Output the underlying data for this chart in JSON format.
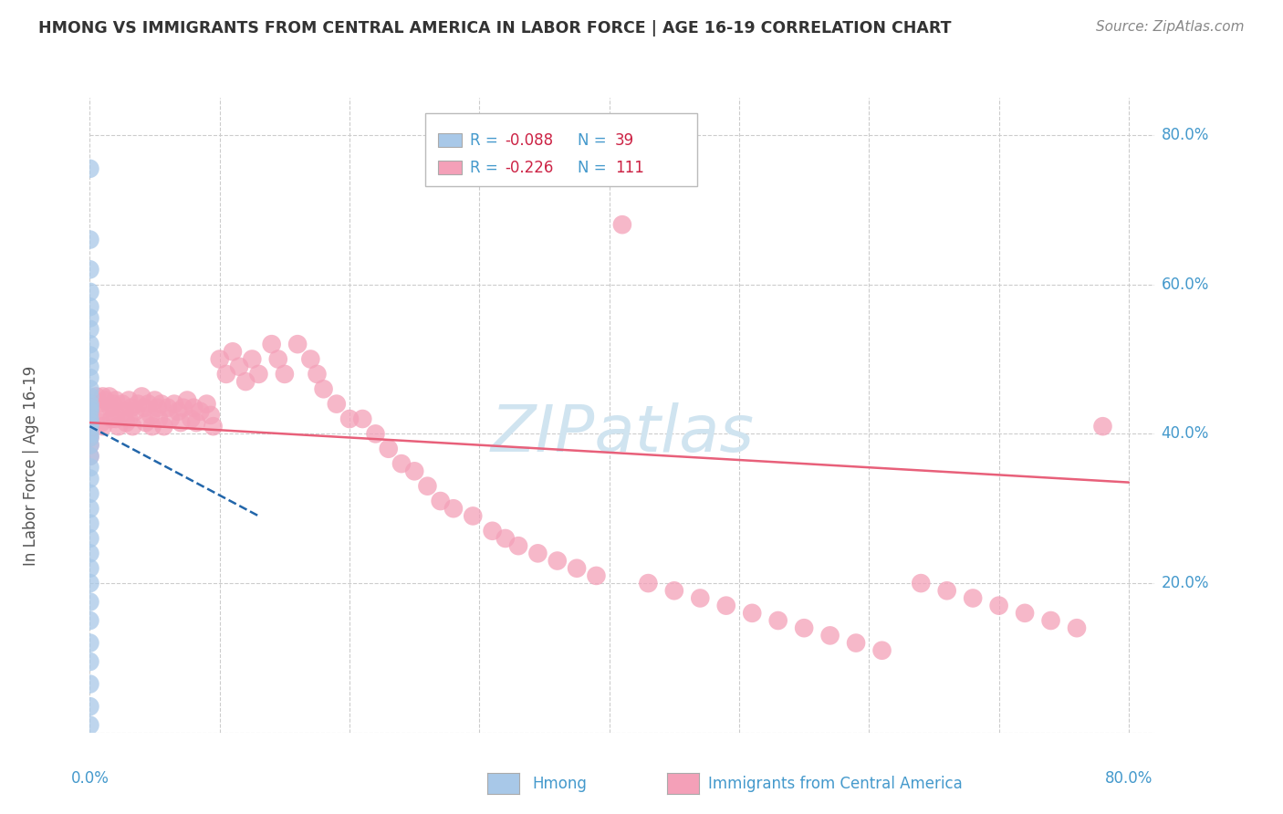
{
  "title": "HMONG VS IMMIGRANTS FROM CENTRAL AMERICA IN LABOR FORCE | AGE 16-19 CORRELATION CHART",
  "source": "Source: ZipAtlas.com",
  "ylabel": "In Labor Force | Age 16-19",
  "xlim": [
    0.0,
    0.82
  ],
  "ylim": [
    0.0,
    0.85
  ],
  "hmong_R": -0.088,
  "hmong_N": 39,
  "ca_R": -0.226,
  "ca_N": 111,
  "hmong_color": "#a8c8e8",
  "ca_color": "#f4a0b8",
  "hmong_line_color": "#2266aa",
  "ca_line_color": "#e8607a",
  "background_color": "#ffffff",
  "grid_color": "#cccccc",
  "title_color": "#333333",
  "tick_label_color": "#4499cc",
  "source_color": "#888888",
  "watermark_color": "#d0e4f0",
  "legend_R_color": "#cc2244",
  "hmong_x": [
    0.0,
    0.0,
    0.0,
    0.0,
    0.0,
    0.0,
    0.0,
    0.0,
    0.0,
    0.0,
    0.0,
    0.0,
    0.0,
    0.0,
    0.0,
    0.0,
    0.0,
    0.0,
    0.0,
    0.0,
    0.0,
    0.0,
    0.0,
    0.0,
    0.0,
    0.0,
    0.0,
    0.0,
    0.0,
    0.0,
    0.0,
    0.0,
    0.0,
    0.0,
    0.0,
    0.0,
    0.0,
    0.0,
    0.0
  ],
  "hmong_y": [
    0.755,
    0.66,
    0.62,
    0.59,
    0.57,
    0.555,
    0.54,
    0.52,
    0.505,
    0.49,
    0.475,
    0.46,
    0.45,
    0.44,
    0.435,
    0.43,
    0.42,
    0.415,
    0.41,
    0.4,
    0.395,
    0.385,
    0.37,
    0.355,
    0.34,
    0.32,
    0.3,
    0.28,
    0.26,
    0.24,
    0.22,
    0.2,
    0.175,
    0.15,
    0.12,
    0.095,
    0.065,
    0.035,
    0.01
  ],
  "ca_x": [
    0.0,
    0.0,
    0.0,
    0.0,
    0.0,
    0.0,
    0.0,
    0.005,
    0.007,
    0.008,
    0.009,
    0.01,
    0.01,
    0.012,
    0.015,
    0.016,
    0.017,
    0.018,
    0.019,
    0.02,
    0.02,
    0.022,
    0.025,
    0.027,
    0.028,
    0.03,
    0.03,
    0.032,
    0.033,
    0.035,
    0.037,
    0.04,
    0.042,
    0.043,
    0.045,
    0.047,
    0.048,
    0.05,
    0.052,
    0.053,
    0.055,
    0.057,
    0.06,
    0.062,
    0.065,
    0.068,
    0.07,
    0.072,
    0.075,
    0.078,
    0.08,
    0.082,
    0.085,
    0.09,
    0.093,
    0.095,
    0.1,
    0.105,
    0.11,
    0.115,
    0.12,
    0.125,
    0.13,
    0.14,
    0.145,
    0.15,
    0.16,
    0.17,
    0.175,
    0.18,
    0.19,
    0.2,
    0.21,
    0.22,
    0.23,
    0.24,
    0.25,
    0.26,
    0.27,
    0.28,
    0.295,
    0.31,
    0.32,
    0.33,
    0.345,
    0.36,
    0.375,
    0.39,
    0.41,
    0.43,
    0.45,
    0.47,
    0.49,
    0.51,
    0.53,
    0.55,
    0.57,
    0.59,
    0.61,
    0.64,
    0.66,
    0.68,
    0.7,
    0.72,
    0.74,
    0.76,
    0.78
  ],
  "ca_y": [
    0.44,
    0.43,
    0.415,
    0.405,
    0.395,
    0.385,
    0.37,
    0.45,
    0.44,
    0.43,
    0.415,
    0.45,
    0.41,
    0.445,
    0.45,
    0.435,
    0.42,
    0.44,
    0.43,
    0.445,
    0.42,
    0.41,
    0.44,
    0.43,
    0.415,
    0.445,
    0.42,
    0.435,
    0.41,
    0.43,
    0.44,
    0.45,
    0.435,
    0.415,
    0.44,
    0.425,
    0.41,
    0.445,
    0.435,
    0.42,
    0.44,
    0.41,
    0.435,
    0.42,
    0.44,
    0.43,
    0.415,
    0.435,
    0.445,
    0.42,
    0.435,
    0.415,
    0.43,
    0.44,
    0.425,
    0.41,
    0.5,
    0.48,
    0.51,
    0.49,
    0.47,
    0.5,
    0.48,
    0.52,
    0.5,
    0.48,
    0.52,
    0.5,
    0.48,
    0.46,
    0.44,
    0.42,
    0.42,
    0.4,
    0.38,
    0.36,
    0.35,
    0.33,
    0.31,
    0.3,
    0.29,
    0.27,
    0.26,
    0.25,
    0.24,
    0.23,
    0.22,
    0.21,
    0.68,
    0.2,
    0.19,
    0.18,
    0.17,
    0.16,
    0.15,
    0.14,
    0.13,
    0.12,
    0.11,
    0.2,
    0.19,
    0.18,
    0.17,
    0.16,
    0.15,
    0.14,
    0.41
  ],
  "hmong_trend_x": [
    0.0,
    0.13
  ],
  "hmong_trend_y": [
    0.41,
    0.29
  ],
  "ca_trend_x": [
    0.0,
    0.8
  ],
  "ca_trend_y": [
    0.415,
    0.335
  ]
}
